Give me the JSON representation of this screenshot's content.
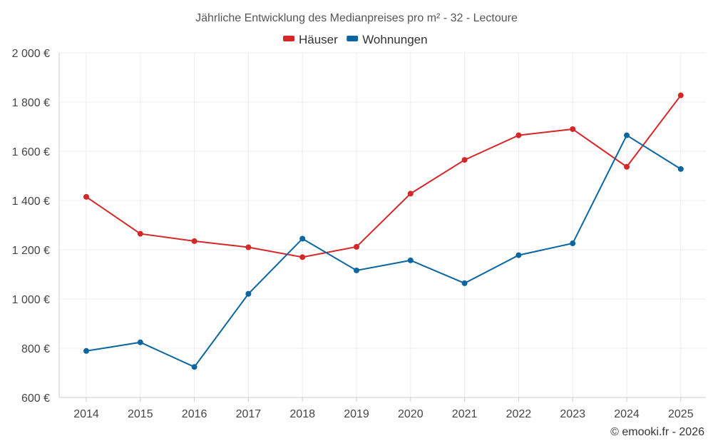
{
  "chart_data": {
    "type": "line",
    "title": "Jährliche Entwicklung des Medianpreises pro m² - 32 - Lectoure",
    "categories": [
      "2014",
      "2015",
      "2016",
      "2017",
      "2018",
      "2019",
      "2020",
      "2021",
      "2022",
      "2023",
      "2024",
      "2025"
    ],
    "series": [
      {
        "name": "Häuser",
        "color": "#d62728",
        "values": [
          1415,
          1265,
          1235,
          1210,
          1170,
          1212,
          1428,
          1565,
          1665,
          1690,
          1537,
          1827
        ]
      },
      {
        "name": "Wohnungen",
        "color": "#0a66a0",
        "values": [
          789,
          824,
          724,
          1021,
          1245,
          1116,
          1157,
          1064,
          1178,
          1226,
          1665,
          1528
        ]
      }
    ],
    "ylim": [
      600,
      2000
    ],
    "yticks": [
      600,
      800,
      1000,
      1200,
      1400,
      1600,
      1800,
      2000
    ],
    "ytick_labels": [
      "600 €",
      "800 €",
      "1 000 €",
      "1 200 €",
      "1 400 €",
      "1 600 €",
      "1 800 €",
      "2 000 €"
    ],
    "xlabel": "",
    "ylabel": "",
    "grid": true,
    "legend_position": "top-center"
  },
  "credit": "© emooki.fr - 2026"
}
